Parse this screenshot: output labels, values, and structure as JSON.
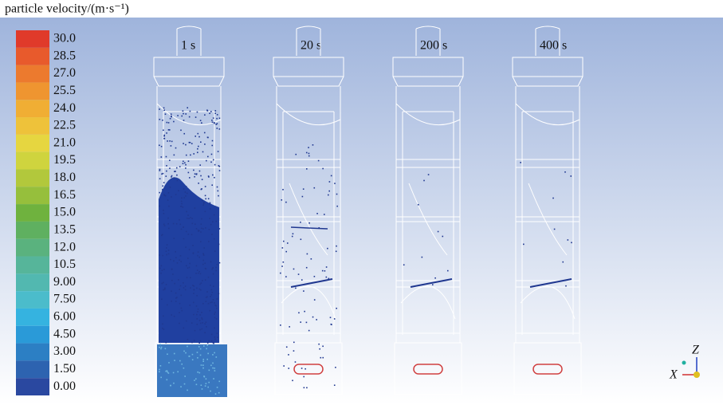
{
  "colorbar": {
    "title": "particle velocity/(m·s⁻¹)",
    "labels": [
      "30.0",
      "28.5",
      "27.0",
      "25.5",
      "24.0",
      "22.5",
      "21.0",
      "19.5",
      "18.0",
      "16.5",
      "15.0",
      "13.5",
      "12.0",
      "10.5",
      "9.00",
      "7.50",
      "6.00",
      "4.50",
      "3.00",
      "1.50",
      "0.00"
    ],
    "colors": [
      "#e03a2a",
      "#e85a2c",
      "#ec7a2e",
      "#ef9530",
      "#f0ae34",
      "#eec23a",
      "#e6d640",
      "#cfd43e",
      "#b2c83c",
      "#96bf3c",
      "#6fb23e",
      "#5fb060",
      "#5ab27e",
      "#56b59a",
      "#52b8b0",
      "#4bbccb",
      "#35b3e0",
      "#2a9ad8",
      "#2c7fc4",
      "#2d63b0",
      "#2a48a0"
    ]
  },
  "panels": [
    {
      "label": "1 s"
    },
    {
      "label": "20 s"
    },
    {
      "label": "200 s"
    },
    {
      "label": "400 s"
    }
  ],
  "axes": {
    "z": "Z",
    "x": "X"
  }
}
